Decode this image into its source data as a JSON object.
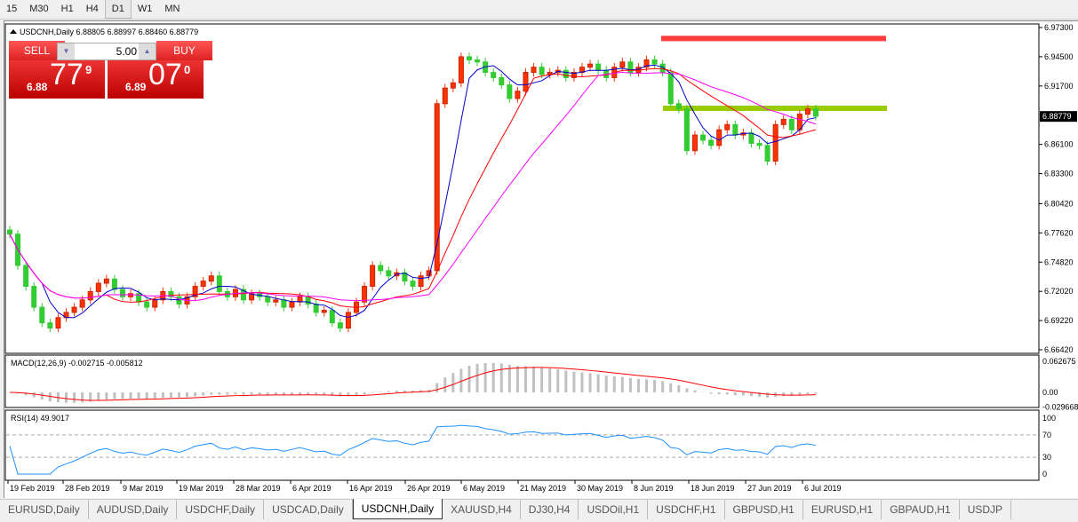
{
  "timeframes": [
    "15",
    "M30",
    "H1",
    "H4",
    "D1",
    "W1",
    "MN"
  ],
  "active_timeframe": "D1",
  "chart": {
    "header": "USDCNH,Daily  6.88805 6.88997 6.88460 6.88779",
    "current_price": "6.88779",
    "price_ticks": [
      "6.97300",
      "6.94500",
      "6.91700",
      "6.86100",
      "6.83300",
      "6.80420",
      "6.77620",
      "6.74820",
      "6.72020",
      "6.69220",
      "6.66420"
    ],
    "price_range": [
      6.6642,
      6.973
    ],
    "macd_label": "MACD(12,26,9) -0.002715 -0.005812",
    "macd_ticks": [
      "0.062675",
      "0.00",
      "-0.029668"
    ],
    "rsi_label": "RSI(14) 49.9017",
    "rsi_ticks": [
      "100",
      "70",
      "30",
      "0"
    ],
    "date_ticks": [
      "19 Feb 2019",
      "28 Feb 2019",
      "9 Mar 2019",
      "19 Mar 2019",
      "28 Mar 2019",
      "6 Apr 2019",
      "16 Apr 2019",
      "26 Apr 2019",
      "6 May 2019",
      "21 May 2019",
      "30 May 2019",
      "8 Jun 2019",
      "18 Jun 2019",
      "27 Jun 2019",
      "6 Jul 2019"
    ],
    "colors": {
      "bull": "#ff3300",
      "bear": "#33cc33",
      "ma_fast": "#0000cc",
      "ma_mid": "#ff0000",
      "ma_slow": "#ff00ff",
      "resistance": "#ff3b3b",
      "support": "#99cc00",
      "macd_hist": "#c0c0c0",
      "rsi": "#1e90ff"
    },
    "levels": {
      "resistance": 6.9625,
      "support": 6.8956
    },
    "closes": [
      6.775,
      6.745,
      6.725,
      6.705,
      6.69,
      6.685,
      6.695,
      6.7,
      6.705,
      6.712,
      6.72,
      6.728,
      6.732,
      6.722,
      6.715,
      6.718,
      6.71,
      6.705,
      6.712,
      6.72,
      6.715,
      6.708,
      6.715,
      6.725,
      6.73,
      6.735,
      6.72,
      6.715,
      6.722,
      6.712,
      6.718,
      6.715,
      6.71,
      6.712,
      6.705,
      6.71,
      6.715,
      6.708,
      6.7,
      6.702,
      6.69,
      6.685,
      6.7,
      6.71,
      6.725,
      6.745,
      6.74,
      6.735,
      6.738,
      6.73,
      6.725,
      6.735,
      6.74,
      6.9,
      6.915,
      6.92,
      6.945,
      6.942,
      6.94,
      6.93,
      6.925,
      6.918,
      6.905,
      6.912,
      6.93,
      6.935,
      6.928,
      6.93,
      6.932,
      6.925,
      6.93,
      6.935,
      6.938,
      6.932,
      6.925,
      6.935,
      6.94,
      6.93,
      6.935,
      6.942,
      6.938,
      6.93,
      6.9,
      6.895,
      6.855,
      6.87,
      6.865,
      6.86,
      6.875,
      6.88,
      6.87,
      6.872,
      6.862,
      6.86,
      6.845,
      6.88,
      6.885,
      6.875,
      6.89,
      6.895,
      6.888
    ]
  },
  "trade": {
    "sell_label": "SELL",
    "buy_label": "BUY",
    "lot": "5.00",
    "sell_small": "6.88",
    "sell_big": "77",
    "sell_sup": "9",
    "buy_small": "6.89",
    "buy_big": "07",
    "buy_sup": "0"
  },
  "tabs": [
    "EURUSD,Daily",
    "AUDUSD,Daily",
    "USDCHF,Daily",
    "USDCAD,Daily",
    "USDCNH,Daily",
    "XAUUSD,H4",
    "DJ30,H4",
    "USDOil,H1",
    "USDCHF,H1",
    "GBPUSD,H1",
    "EURUSD,H1",
    "GBPAUD,H1",
    "USDJP"
  ],
  "active_tab": "USDCNH,Daily"
}
